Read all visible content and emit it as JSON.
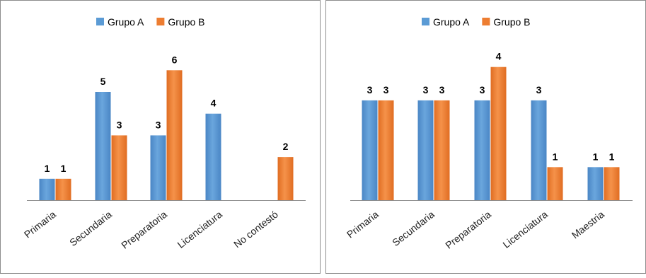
{
  "chart_data": [
    {
      "type": "bar",
      "categories": [
        "Primaria",
        "Secundaria",
        "Preparatoria",
        "Licenciatura",
        "No contestó"
      ],
      "series": [
        {
          "name": "Grupo A",
          "values": [
            1,
            5,
            3,
            4,
            null
          ]
        },
        {
          "name": "Grupo B",
          "values": [
            1,
            3,
            6,
            null,
            2
          ]
        }
      ],
      "ylim": [
        0,
        7
      ],
      "grid": false,
      "legend": "top-center",
      "data_labels": true,
      "colors": [
        "#5b9bd5",
        "#ed7d31"
      ]
    },
    {
      "type": "bar",
      "categories": [
        "Primaria",
        "Secundaria",
        "Preparatoria",
        "Licenciatura",
        "Maestria"
      ],
      "series": [
        {
          "name": "Grupo A",
          "values": [
            3,
            3,
            3,
            3,
            1
          ]
        },
        {
          "name": "Grupo B",
          "values": [
            3,
            3,
            4,
            1,
            1
          ]
        }
      ],
      "ylim": [
        0,
        5
      ],
      "grid": false,
      "legend": "top-center",
      "data_labels": true,
      "colors": [
        "#5b9bd5",
        "#ed7d31"
      ]
    }
  ]
}
